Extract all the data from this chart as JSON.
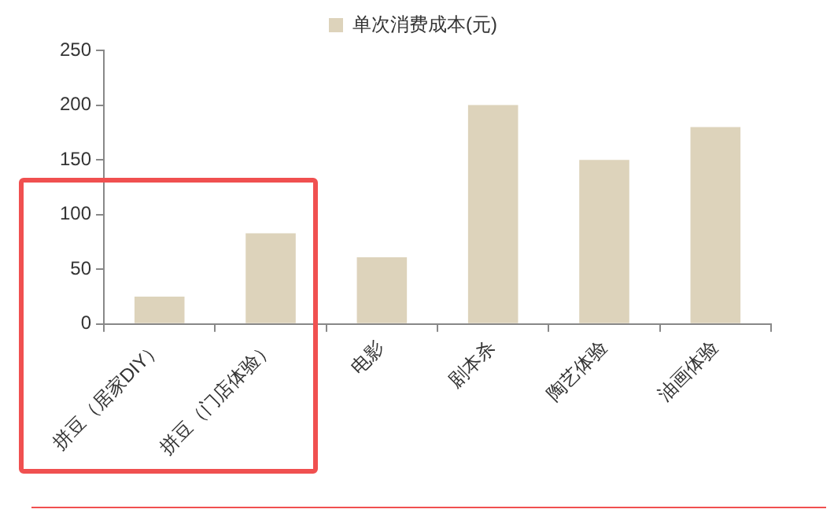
{
  "chart_data": {
    "type": "bar",
    "categories": [
      "拼豆（居家DIY）",
      "拼豆（门店体验）",
      "电影",
      "剧本杀",
      "陶艺体验",
      "油画体验"
    ],
    "series": [
      {
        "name": "单次消费成本(元)",
        "color": "#ddd3bb",
        "values": [
          25,
          83,
          61,
          200,
          150,
          180
        ]
      }
    ],
    "ylim": [
      0,
      250
    ],
    "yticks": [
      0,
      50,
      100,
      150,
      200,
      250
    ],
    "grid": false,
    "legend": "top"
  }
}
